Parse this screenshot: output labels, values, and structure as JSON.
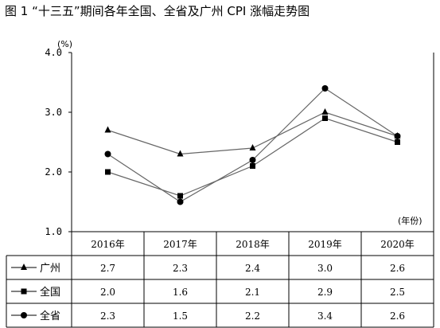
{
  "chart_data": {
    "type": "line",
    "title": "图 1    “十三五”期间各年全国、全省及广州 CPI 涨幅走势图",
    "y_unit": "(%)",
    "x_unit": "(年份)",
    "ylim": [
      1.0,
      4.0
    ],
    "yticks": [
      "1.0",
      "2.0",
      "3.0",
      "4.0"
    ],
    "categories": [
      "2016年",
      "2017年",
      "2018年",
      "2019年",
      "2020年"
    ],
    "series": [
      {
        "name": "广州",
        "marker": "triangle",
        "values": [
          2.7,
          2.3,
          2.4,
          3.0,
          2.6
        ],
        "labels": [
          "2.7",
          "2.3",
          "2.4",
          "3.0",
          "2.6"
        ]
      },
      {
        "name": "全国",
        "marker": "square",
        "values": [
          2.0,
          1.6,
          2.1,
          2.9,
          2.5
        ],
        "labels": [
          "2.0",
          "1.6",
          "2.1",
          "2.9",
          "2.5"
        ]
      },
      {
        "name": "全省",
        "marker": "circle",
        "values": [
          2.3,
          1.5,
          2.2,
          3.4,
          2.6
        ],
        "labels": [
          "2.3",
          "1.5",
          "2.2",
          "3.4",
          "2.6"
        ]
      }
    ],
    "grid": false,
    "legend": "table-rows",
    "colors": {
      "line": "#666666",
      "marker": "#000000"
    }
  }
}
